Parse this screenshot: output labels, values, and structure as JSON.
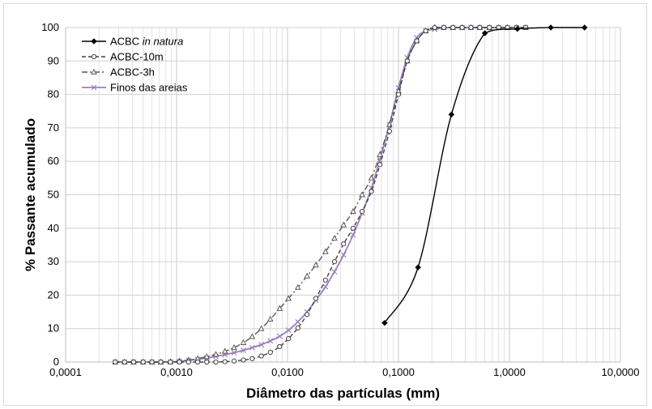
{
  "chart_data": {
    "type": "line",
    "xscale": "log",
    "xlim": [
      0.0001,
      10
    ],
    "ylim": [
      0,
      100
    ],
    "xlabel": "Diâmetro das partículas (mm)",
    "ylabel": "% Passante acumulado",
    "xticks": [
      "0,0001",
      "0,0010",
      "0,0100",
      "0,1000",
      "1,0000",
      "10,0000"
    ],
    "yticks": [
      "0",
      "10",
      "20",
      "30",
      "40",
      "50",
      "60",
      "70",
      "80",
      "90",
      "100"
    ],
    "grid": true,
    "legend_position": "top-left",
    "series": [
      {
        "name": "ACBC in natura",
        "name_prefix": "ACBC ",
        "name_italic": "in natura",
        "color": "#000000",
        "dash": "",
        "marker": "diamond",
        "x": [
          0.075,
          0.15,
          0.3,
          0.6,
          1.18,
          2.36,
          4.75
        ],
        "y": [
          11.7,
          28.3,
          74.0,
          98.3,
          99.6,
          100,
          100
        ]
      },
      {
        "name": "ACBC-10m",
        "color": "#404040",
        "dash": "5,3",
        "marker": "circle",
        "x": [
          0.00028,
          0.00034,
          0.00041,
          0.0005,
          0.0006,
          0.00072,
          0.00088,
          0.00106,
          0.00128,
          0.00155,
          0.00187,
          0.00226,
          0.00273,
          0.0033,
          0.004,
          0.0048,
          0.0058,
          0.007,
          0.0085,
          0.0102,
          0.0124,
          0.015,
          0.018,
          0.022,
          0.0265,
          0.032,
          0.039,
          0.047,
          0.057,
          0.068,
          0.083,
          0.1,
          0.12,
          0.146,
          0.176,
          0.212,
          0.256,
          0.31,
          0.375,
          0.45,
          0.54,
          0.66,
          0.8,
          0.96,
          1.16,
          1.4
        ],
        "y": [
          0,
          0,
          0,
          0,
          0,
          0,
          0,
          0,
          0,
          0,
          0,
          0,
          0.1,
          0.3,
          0.6,
          1.0,
          1.8,
          2.9,
          4.6,
          7.0,
          10.2,
          14.2,
          19.0,
          24.5,
          30.0,
          35.3,
          40.0,
          45.0,
          51.0,
          59.0,
          69.0,
          80.0,
          90.0,
          96.0,
          99.0,
          100,
          100,
          100,
          100,
          100,
          100,
          100,
          100,
          100,
          100,
          100
        ]
      },
      {
        "name": "ACBC-3h",
        "color": "#595959",
        "dash": "7,3,2,3",
        "marker": "triangle",
        "x": [
          0.00028,
          0.00034,
          0.00041,
          0.0005,
          0.0006,
          0.00072,
          0.00088,
          0.00106,
          0.00128,
          0.00155,
          0.00187,
          0.00226,
          0.00273,
          0.0033,
          0.004,
          0.0048,
          0.0058,
          0.007,
          0.0085,
          0.0102,
          0.0124,
          0.015,
          0.018,
          0.022,
          0.0265,
          0.032,
          0.039,
          0.047,
          0.057,
          0.068,
          0.083,
          0.1,
          0.12,
          0.146,
          0.176,
          0.212,
          0.256,
          0.31,
          0.375,
          0.45,
          0.54,
          0.66,
          0.8,
          0.96,
          1.16,
          1.4
        ],
        "y": [
          0,
          0,
          0,
          0,
          0,
          0,
          0.1,
          0.3,
          0.6,
          1.0,
          1.6,
          2.3,
          3.2,
          4.3,
          5.8,
          7.6,
          10.0,
          12.8,
          16.0,
          19.0,
          22.3,
          25.7,
          29.0,
          33.0,
          37.0,
          41.0,
          45.0,
          50.0,
          55.0,
          62.0,
          71.0,
          81.0,
          90.0,
          96.0,
          99.0,
          100,
          100,
          100,
          100,
          100,
          100,
          100,
          100,
          100,
          100,
          100
        ]
      },
      {
        "name": "Finos das areias",
        "color": "#9b7fc0",
        "dash": "",
        "marker": "x",
        "x": [
          0.00028,
          0.00034,
          0.00041,
          0.0005,
          0.0006,
          0.00072,
          0.00088,
          0.00106,
          0.00128,
          0.00155,
          0.00187,
          0.00226,
          0.00273,
          0.0033,
          0.004,
          0.0048,
          0.0058,
          0.007,
          0.0085,
          0.0102,
          0.0124,
          0.015,
          0.018,
          0.022,
          0.0265,
          0.032,
          0.039,
          0.047,
          0.057,
          0.068,
          0.083,
          0.1,
          0.12,
          0.146,
          0.176,
          0.212,
          0.256,
          0.31,
          0.375,
          0.45,
          0.54,
          0.66,
          0.8,
          0.96,
          1.16,
          1.4
        ],
        "y": [
          0,
          0,
          0,
          0,
          0,
          0,
          0,
          0.2,
          0.5,
          0.8,
          1.2,
          1.7,
          2.2,
          2.8,
          3.5,
          4.3,
          5.2,
          6.3,
          7.7,
          9.5,
          12.0,
          15.0,
          18.5,
          22.5,
          27.0,
          32.0,
          38.0,
          44.5,
          52.0,
          60.5,
          71.0,
          82.0,
          91.0,
          97.0,
          99.0,
          99.5,
          100,
          100,
          100,
          100,
          100,
          100,
          100,
          100,
          100,
          100
        ]
      }
    ]
  }
}
